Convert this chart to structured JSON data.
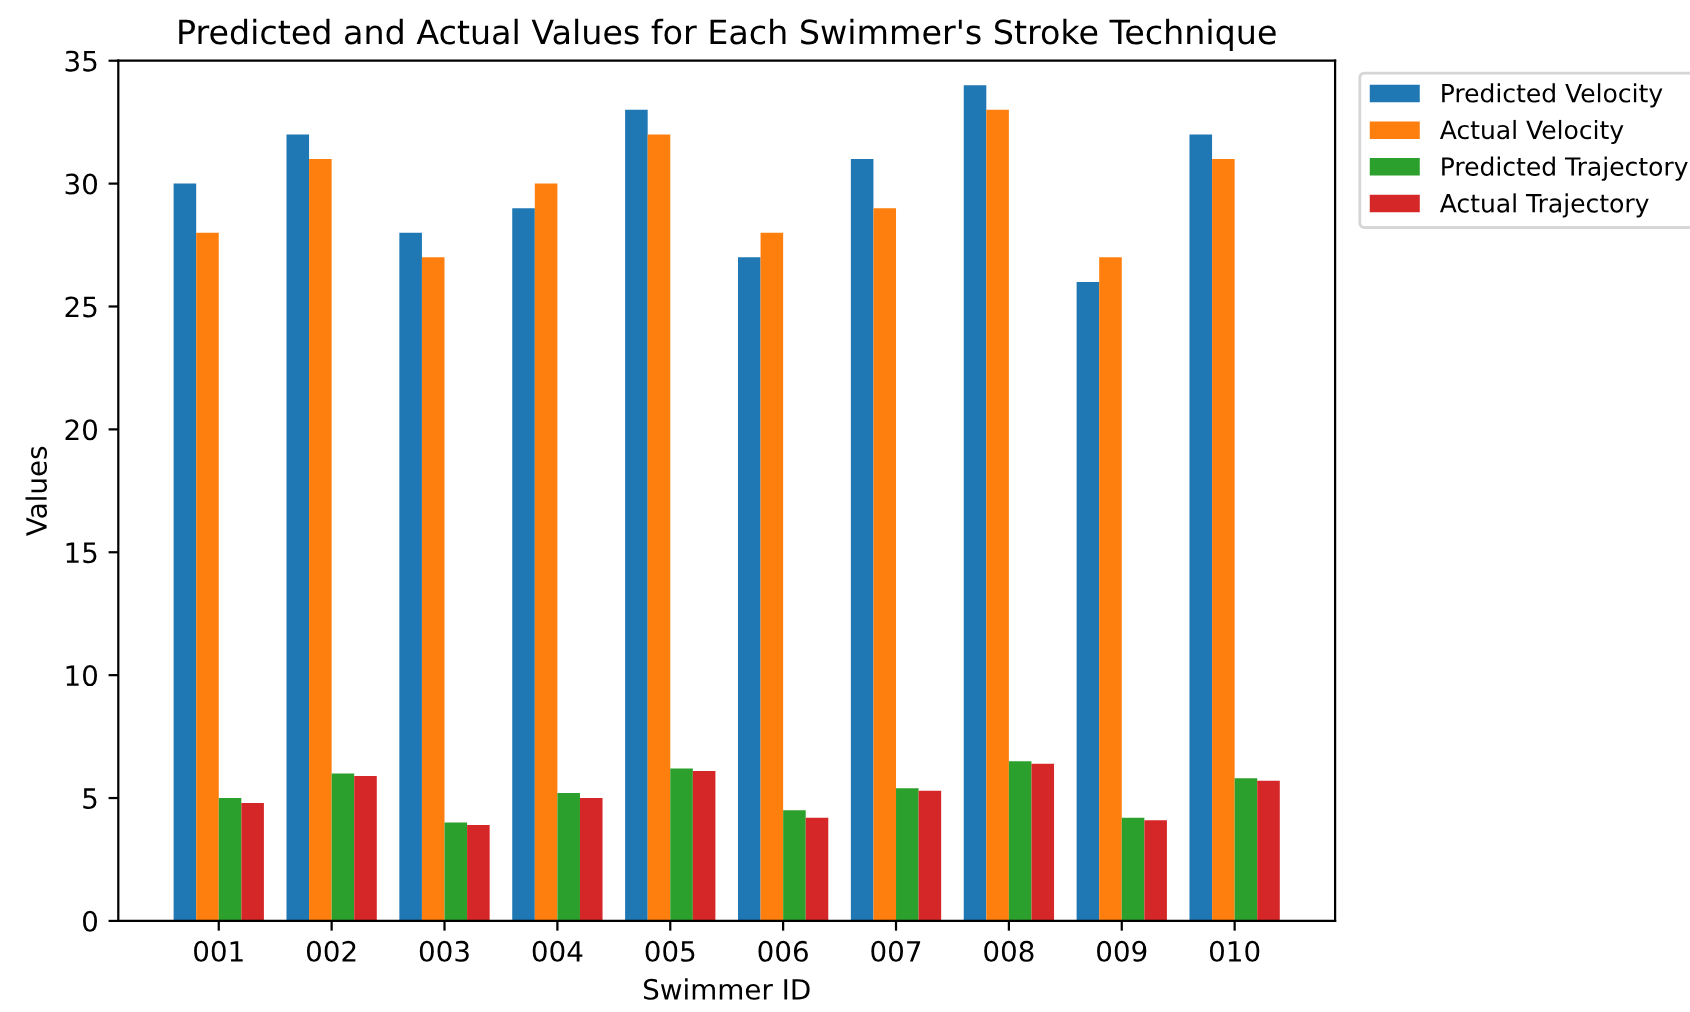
{
  "chart_data": {
    "type": "bar",
    "title": "Predicted and Actual Values for Each Swimmer's Stroke Technique",
    "xlabel": "Swimmer ID",
    "ylabel": "Values",
    "categories": [
      "001",
      "002",
      "003",
      "004",
      "005",
      "006",
      "007",
      "008",
      "009",
      "010"
    ],
    "series": [
      {
        "name": "Predicted Velocity",
        "color": "#1f77b4",
        "values": [
          30,
          32,
          28,
          29,
          33,
          27,
          31,
          34,
          26,
          32
        ]
      },
      {
        "name": "Actual Velocity",
        "color": "#ff7f0e",
        "values": [
          28,
          31,
          27,
          30,
          32,
          28,
          29,
          33,
          27,
          31
        ]
      },
      {
        "name": "Predicted Trajectory",
        "color": "#2ca02c",
        "values": [
          5.0,
          6.0,
          4.0,
          5.2,
          6.2,
          4.5,
          5.4,
          6.5,
          4.2,
          5.8
        ]
      },
      {
        "name": "Actual Trajectory",
        "color": "#d62728",
        "values": [
          4.8,
          5.9,
          3.9,
          5.0,
          6.1,
          4.2,
          5.3,
          6.4,
          4.1,
          5.7
        ]
      }
    ],
    "ylim": [
      0,
      35
    ],
    "yticks": [
      0,
      5,
      10,
      15,
      20,
      25,
      30,
      35
    ],
    "legend": "top right",
    "grid": false
  }
}
